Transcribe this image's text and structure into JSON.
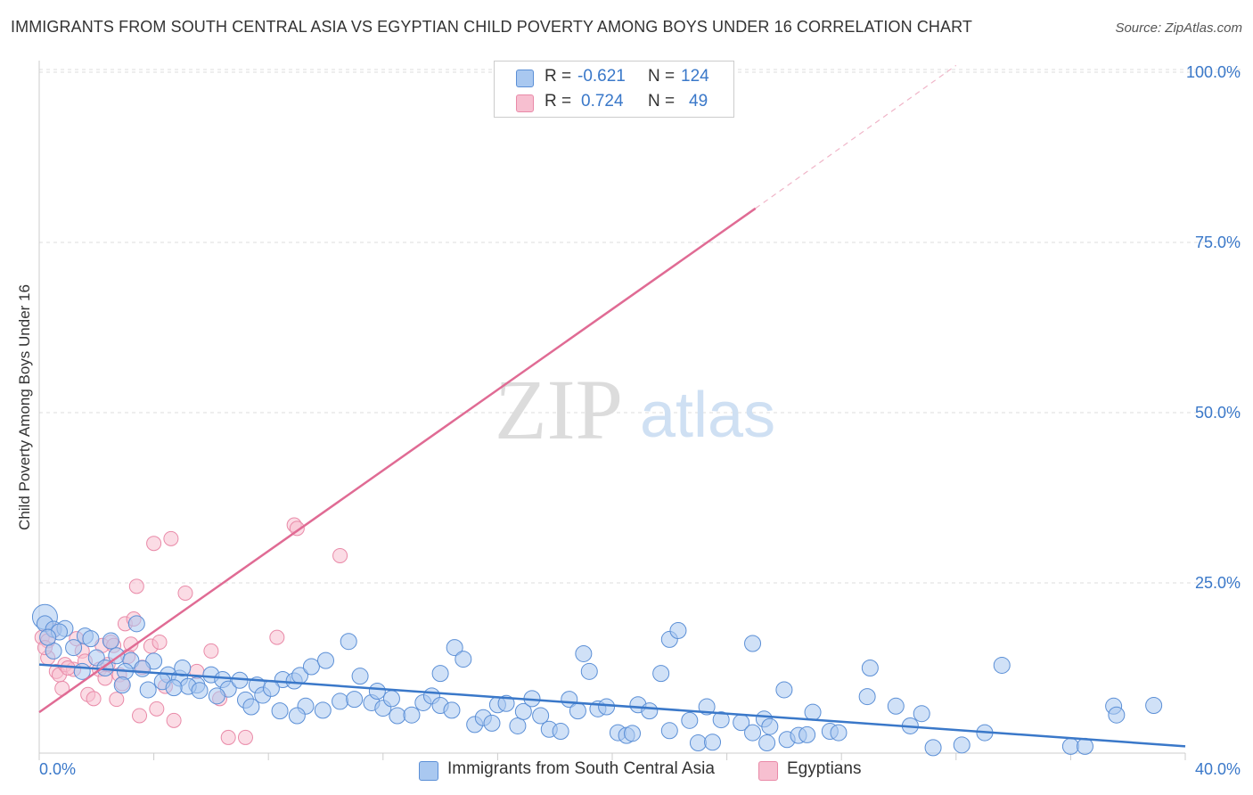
{
  "header": {
    "title": "IMMIGRANTS FROM SOUTH CENTRAL ASIA VS EGYPTIAN CHILD POVERTY AMONG BOYS UNDER 16 CORRELATION CHART",
    "source": "Source: ZipAtlas.com"
  },
  "legend": {
    "r_label": "R =",
    "n_label": "N =",
    "series1": {
      "r": "-0.621",
      "n": "124"
    },
    "series2": {
      "r": "0.724",
      "n": "49"
    }
  },
  "watermark": {
    "zip": "ZIP",
    "atlas": "atlas"
  },
  "colors": {
    "blue_fill": "#a9c8f0",
    "blue_stroke": "#5b8fd6",
    "blue_line": "#3a78c9",
    "pink_fill": "#f7bfd0",
    "pink_stroke": "#e98aa8",
    "pink_line": "#e06b94",
    "axis_text": "#3a78c9",
    "grid": "#dddddd"
  },
  "chart_data": {
    "type": "scatter",
    "title": "IMMIGRANTS FROM SOUTH CENTRAL ASIA VS EGYPTIAN CHILD POVERTY AMONG BOYS UNDER 16 CORRELATION CHART",
    "xlabel": "",
    "ylabel": "Child Poverty Among Boys Under 16",
    "xlim": [
      0,
      40
    ],
    "ylim": [
      0,
      100
    ],
    "x_tick_labels": [
      "0.0%",
      "40.0%"
    ],
    "y_tick_labels": [
      "25.0%",
      "50.0%",
      "75.0%",
      "100.0%"
    ],
    "y_ticks": [
      25,
      50,
      75,
      100
    ],
    "series": [
      {
        "name": "Immigrants from South Central Asia",
        "r": -0.621,
        "n": 124,
        "trend": {
          "x0": 0,
          "y0": 13.0,
          "x1": 40,
          "y1": 1.0
        },
        "points": [
          [
            0.2,
            20.0
          ],
          [
            0.2,
            19.0
          ],
          [
            0.5,
            18.2
          ],
          [
            0.9,
            18.3
          ],
          [
            0.7,
            17.8
          ],
          [
            1.6,
            17.2
          ],
          [
            1.8,
            16.8
          ],
          [
            2.5,
            16.5
          ],
          [
            3.4,
            19.0
          ],
          [
            1.2,
            15.5
          ],
          [
            0.5,
            15.0
          ],
          [
            2.0,
            14.0
          ],
          [
            2.7,
            14.3
          ],
          [
            3.2,
            13.6
          ],
          [
            4.0,
            13.5
          ],
          [
            2.3,
            12.5
          ],
          [
            3.0,
            12.0
          ],
          [
            3.6,
            12.4
          ],
          [
            4.5,
            11.5
          ],
          [
            4.9,
            11.0
          ],
          [
            5.0,
            12.5
          ],
          [
            4.3,
            10.5
          ],
          [
            5.5,
            10.0
          ],
          [
            6.0,
            11.5
          ],
          [
            6.4,
            10.8
          ],
          [
            5.2,
            9.8
          ],
          [
            3.8,
            9.3
          ],
          [
            5.6,
            9.2
          ],
          [
            6.6,
            9.4
          ],
          [
            7.0,
            10.7
          ],
          [
            7.6,
            10.0
          ],
          [
            8.5,
            10.8
          ],
          [
            8.9,
            10.6
          ],
          [
            9.1,
            11.4
          ],
          [
            9.5,
            12.7
          ],
          [
            10.0,
            13.6
          ],
          [
            10.8,
            16.4
          ],
          [
            11.2,
            11.3
          ],
          [
            7.8,
            8.5
          ],
          [
            7.2,
            7.8
          ],
          [
            8.1,
            9.5
          ],
          [
            7.4,
            6.8
          ],
          [
            8.4,
            6.2
          ],
          [
            9.3,
            6.9
          ],
          [
            9.9,
            6.3
          ],
          [
            10.5,
            7.6
          ],
          [
            11.0,
            7.9
          ],
          [
            11.6,
            7.4
          ],
          [
            12.0,
            6.6
          ],
          [
            12.3,
            8.0
          ],
          [
            12.5,
            5.5
          ],
          [
            13.0,
            5.6
          ],
          [
            13.4,
            7.4
          ],
          [
            13.7,
            8.4
          ],
          [
            14.0,
            7.0
          ],
          [
            14.4,
            6.3
          ],
          [
            14.0,
            11.7
          ],
          [
            14.5,
            15.5
          ],
          [
            14.8,
            13.8
          ],
          [
            15.2,
            4.2
          ],
          [
            15.5,
            5.2
          ],
          [
            16.0,
            7.1
          ],
          [
            16.3,
            7.3
          ],
          [
            16.7,
            4.0
          ],
          [
            16.9,
            6.1
          ],
          [
            17.2,
            8.0
          ],
          [
            17.5,
            5.5
          ],
          [
            17.8,
            3.5
          ],
          [
            18.2,
            3.2
          ],
          [
            18.5,
            7.9
          ],
          [
            18.8,
            6.2
          ],
          [
            19.0,
            14.6
          ],
          [
            19.5,
            6.5
          ],
          [
            19.8,
            6.8
          ],
          [
            19.2,
            12.0
          ],
          [
            20.2,
            3.0
          ],
          [
            20.5,
            2.6
          ],
          [
            20.7,
            2.9
          ],
          [
            20.9,
            7.1
          ],
          [
            21.3,
            6.2
          ],
          [
            21.7,
            11.7
          ],
          [
            22.0,
            16.7
          ],
          [
            22.3,
            18.0
          ],
          [
            22.0,
            3.3
          ],
          [
            22.7,
            4.8
          ],
          [
            23.0,
            1.5
          ],
          [
            23.3,
            6.8
          ],
          [
            23.8,
            4.9
          ],
          [
            24.5,
            4.5
          ],
          [
            24.9,
            3.0
          ],
          [
            25.3,
            5.0
          ],
          [
            25.5,
            3.9
          ],
          [
            25.4,
            1.5
          ],
          [
            24.9,
            16.1
          ],
          [
            26.1,
            2.0
          ],
          [
            26.5,
            2.6
          ],
          [
            26.0,
            9.3
          ],
          [
            27.0,
            6.0
          ],
          [
            27.6,
            3.2
          ],
          [
            27.9,
            3.0
          ],
          [
            28.9,
            8.3
          ],
          [
            29.0,
            12.5
          ],
          [
            29.9,
            6.9
          ],
          [
            30.4,
            4.0
          ],
          [
            30.8,
            5.8
          ],
          [
            31.2,
            0.8
          ],
          [
            32.2,
            1.2
          ],
          [
            33.0,
            3.0
          ],
          [
            33.6,
            12.9
          ],
          [
            36.0,
            1.0
          ],
          [
            36.5,
            1.0
          ],
          [
            37.5,
            6.9
          ],
          [
            37.6,
            5.6
          ],
          [
            38.9,
            7.0
          ],
          [
            0.3,
            17.0
          ],
          [
            1.5,
            12.0
          ],
          [
            2.9,
            10.0
          ],
          [
            4.7,
            9.6
          ],
          [
            6.2,
            8.4
          ],
          [
            9.0,
            5.5
          ],
          [
            11.8,
            9.1
          ],
          [
            15.8,
            4.4
          ],
          [
            23.5,
            1.6
          ],
          [
            26.8,
            2.7
          ]
        ]
      },
      {
        "name": "Egyptians",
        "r": 0.724,
        "n": 49,
        "trend": {
          "x0": 0,
          "y0": 6.0,
          "x1": 25,
          "y1": 80.0,
          "dashed_to": {
            "x": 32,
            "y": 101.0
          }
        },
        "points": [
          [
            0.1,
            17.0
          ],
          [
            0.3,
            16.5
          ],
          [
            0.5,
            18.0
          ],
          [
            0.3,
            14.0
          ],
          [
            0.6,
            12.0
          ],
          [
            0.7,
            11.5
          ],
          [
            0.8,
            9.5
          ],
          [
            0.9,
            13.0
          ],
          [
            1.2,
            12.3
          ],
          [
            1.3,
            16.8
          ],
          [
            1.5,
            15.0
          ],
          [
            1.6,
            13.5
          ],
          [
            1.7,
            8.6
          ],
          [
            1.9,
            8.0
          ],
          [
            2.1,
            12.3
          ],
          [
            2.2,
            15.8
          ],
          [
            2.3,
            11.0
          ],
          [
            2.5,
            16.3
          ],
          [
            2.6,
            15.8
          ],
          [
            2.7,
            7.9
          ],
          [
            2.8,
            11.5
          ],
          [
            2.9,
            10.2
          ],
          [
            3.1,
            14.2
          ],
          [
            3.2,
            16.0
          ],
          [
            3.0,
            19.0
          ],
          [
            3.3,
            19.7
          ],
          [
            3.4,
            24.5
          ],
          [
            3.5,
            5.5
          ],
          [
            3.6,
            12.6
          ],
          [
            3.9,
            15.7
          ],
          [
            4.0,
            30.8
          ],
          [
            4.1,
            6.5
          ],
          [
            4.2,
            16.3
          ],
          [
            4.4,
            9.8
          ],
          [
            4.6,
            31.5
          ],
          [
            4.7,
            4.8
          ],
          [
            5.1,
            23.5
          ],
          [
            6.0,
            15.0
          ],
          [
            6.3,
            8.0
          ],
          [
            6.6,
            2.3
          ],
          [
            7.2,
            2.3
          ],
          [
            8.3,
            17.0
          ],
          [
            8.9,
            33.5
          ],
          [
            9.0,
            33.0
          ],
          [
            10.5,
            29.0
          ],
          [
            0.2,
            15.5
          ],
          [
            1.0,
            12.5
          ],
          [
            2.4,
            13.0
          ],
          [
            5.5,
            12.0
          ]
        ]
      }
    ]
  },
  "bottom_legend": {
    "series1": "Immigrants from South Central Asia",
    "series2": "Egyptians"
  }
}
